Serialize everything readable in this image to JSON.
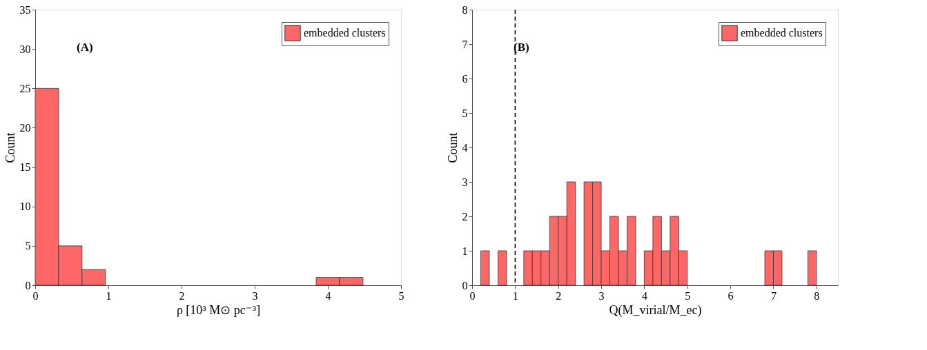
{
  "chart_data": [
    {
      "type": "histogram",
      "xlabel": "ρ [10³ M⊙ pc⁻³]",
      "ylabel": "Count",
      "annotations": [
        "(A)"
      ],
      "bins": [
        0,
        0.32,
        0.64,
        0.96,
        1.28,
        1.6,
        1.92,
        2.24,
        2.56,
        2.88,
        3.2,
        3.52,
        3.84,
        4.16,
        4.48
      ],
      "series": [
        {
          "name": "embedded clusters",
          "color": "#ff6666",
          "values": [
            25,
            5,
            2,
            0,
            0,
            0,
            0,
            0,
            0,
            0,
            0,
            0,
            1,
            1
          ]
        }
      ],
      "xlim": [
        0,
        5
      ],
      "xticks": [
        0,
        1,
        2,
        3,
        4,
        5
      ],
      "ylim": [
        0,
        35
      ],
      "yticks": [
        0,
        5,
        10,
        15,
        20,
        25,
        30,
        35
      ],
      "legend": "top right",
      "grid": false
    },
    {
      "type": "histogram",
      "xlabel": "Q(M_virial/M_ec)",
      "ylabel": "Count",
      "annotations": [
        "(B)"
      ],
      "bins": [
        0.2,
        0.4,
        0.6,
        0.8,
        1.0,
        1.2,
        1.4,
        1.6,
        1.8,
        2.0,
        2.2,
        2.4,
        2.6,
        2.8,
        3.0,
        3.2,
        3.4,
        3.6,
        3.8,
        4.0,
        4.2,
        4.4,
        4.6,
        4.8,
        5.0,
        5.2,
        5.4,
        5.6,
        5.8,
        6.0,
        6.2,
        6.4,
        6.6,
        6.8,
        7.0,
        7.2,
        7.4,
        7.6,
        7.8,
        8.0
      ],
      "series": [
        {
          "name": "embedded clusters",
          "color": "#ff6666",
          "values": [
            1,
            0,
            1,
            0,
            0,
            1,
            1,
            1,
            2,
            2,
            3,
            0,
            3,
            3,
            1,
            2,
            1,
            2,
            0,
            1,
            2,
            1,
            2,
            1,
            0,
            0,
            0,
            0,
            0,
            0,
            0,
            0,
            0,
            1,
            1,
            0,
            0,
            0,
            1
          ]
        }
      ],
      "ref_lines": [
        {
          "axis": "x",
          "value": 1,
          "line_style": "dashed",
          "color": "#000000"
        }
      ],
      "xlim": [
        0,
        8.5
      ],
      "xticks": [
        0,
        1,
        2,
        3,
        4,
        5,
        6,
        7,
        8
      ],
      "ylim": [
        0,
        8
      ],
      "yticks": [
        0,
        1,
        2,
        3,
        4,
        5,
        6,
        7,
        8
      ],
      "legend": "top right",
      "grid": false
    }
  ]
}
